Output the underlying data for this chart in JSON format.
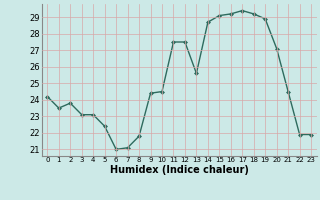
{
  "x": [
    0,
    1,
    2,
    3,
    4,
    5,
    6,
    7,
    8,
    9,
    10,
    11,
    12,
    13,
    14,
    15,
    16,
    17,
    18,
    19,
    20,
    21,
    22,
    23
  ],
  "y": [
    24.2,
    23.5,
    23.8,
    23.1,
    23.1,
    22.4,
    21.0,
    21.1,
    21.8,
    24.4,
    24.5,
    27.5,
    27.5,
    25.6,
    28.7,
    29.1,
    29.2,
    29.4,
    29.2,
    28.9,
    27.1,
    24.5,
    21.9,
    21.9
  ],
  "xlim": [
    -0.5,
    23.5
  ],
  "ylim": [
    20.6,
    29.8
  ],
  "yticks": [
    21,
    22,
    23,
    24,
    25,
    26,
    27,
    28,
    29
  ],
  "xticks": [
    0,
    1,
    2,
    3,
    4,
    5,
    6,
    7,
    8,
    9,
    10,
    11,
    12,
    13,
    14,
    15,
    16,
    17,
    18,
    19,
    20,
    21,
    22,
    23
  ],
  "xlabel": "Humidex (Indice chaleur)",
  "line_color": "#2e6b5e",
  "marker": "D",
  "marker_size": 2,
  "bg_color": "#cce9e7",
  "grid_color": "#e8e8e8",
  "title": ""
}
